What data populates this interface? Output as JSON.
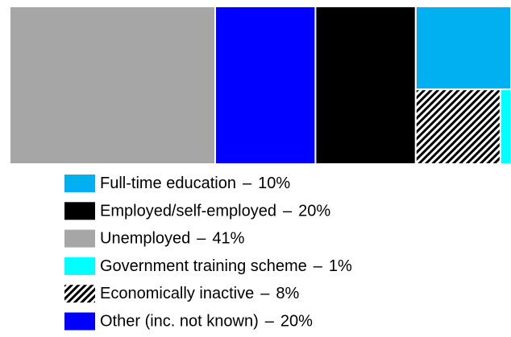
{
  "chart_data": {
    "type": "treemap",
    "categories": [
      "Full-time education",
      "Employed/self-employed",
      "Unemployed",
      "Government training scheme",
      "Economically inactive",
      "Other (inc. not known)"
    ],
    "values": [
      10,
      20,
      41,
      1,
      8,
      20
    ],
    "value_labels": [
      "10%",
      "20%",
      "41%",
      "1%",
      "8%",
      "20%"
    ],
    "label_separator": "–",
    "colors": [
      "#00b0f0",
      "#000000",
      "#a6a6a6",
      "#00ffff",
      "#000000",
      "#0000ff"
    ],
    "hatched": [
      false,
      false,
      false,
      false,
      true,
      false
    ]
  }
}
